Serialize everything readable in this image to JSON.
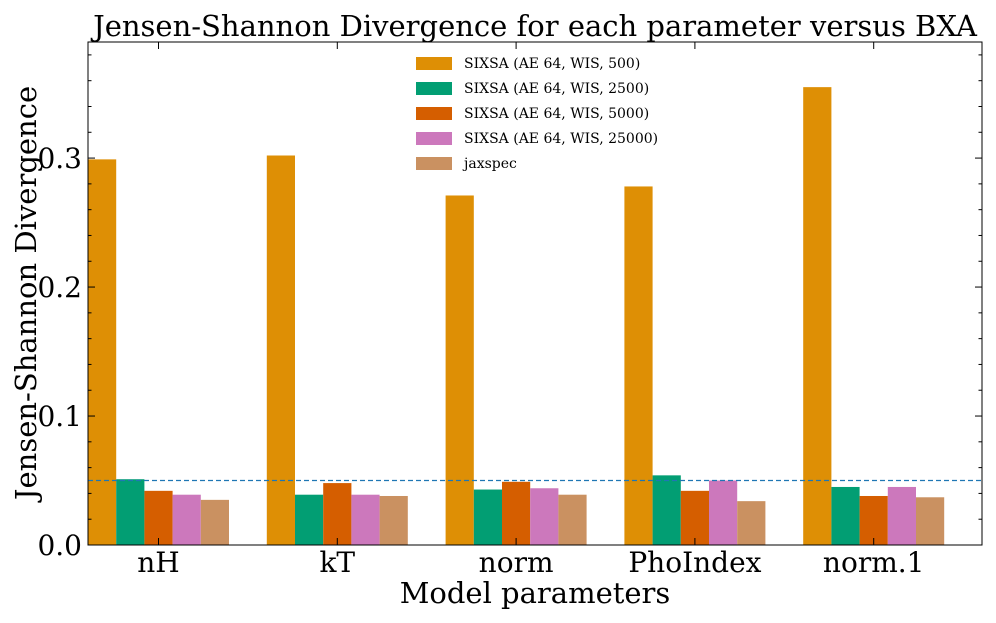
{
  "chart_data": {
    "type": "bar",
    "title": "Jensen-Shannon Divergence for each parameter versus BXA",
    "xlabel": "Model parameters",
    "ylabel": "Jensen-Shannon Divergence",
    "categories": [
      "nH",
      "kT",
      "norm",
      "PhoIndex",
      "norm.1"
    ],
    "ylim": [
      0,
      0.39
    ],
    "yticks": [
      0.0,
      0.1,
      0.2,
      0.3
    ],
    "ytick_labels": [
      "0.0",
      "0.1",
      "0.2",
      "0.3"
    ],
    "reference_line": {
      "y": 0.05,
      "style": "dashed",
      "color": "#1f77b4"
    },
    "legend_position": "top-center",
    "series": [
      {
        "name": "SIXSA (AE 64, WIS, 500)",
        "color": "#de8f05",
        "values": [
          0.299,
          0.302,
          0.271,
          0.278,
          0.355
        ]
      },
      {
        "name": "SIXSA (AE 64, WIS, 2500)",
        "color": "#029e73",
        "values": [
          0.051,
          0.039,
          0.043,
          0.054,
          0.045
        ]
      },
      {
        "name": "SIXSA (AE 64, WIS, 5000)",
        "color": "#d55e00",
        "values": [
          0.042,
          0.048,
          0.049,
          0.042,
          0.038
        ]
      },
      {
        "name": "SIXSA (AE 64, WIS, 25000)",
        "color": "#cc78bc",
        "values": [
          0.039,
          0.039,
          0.044,
          0.05,
          0.045
        ]
      },
      {
        "name": "jaxspec",
        "color": "#ca9161",
        "values": [
          0.035,
          0.038,
          0.039,
          0.034,
          0.037
        ]
      }
    ]
  }
}
